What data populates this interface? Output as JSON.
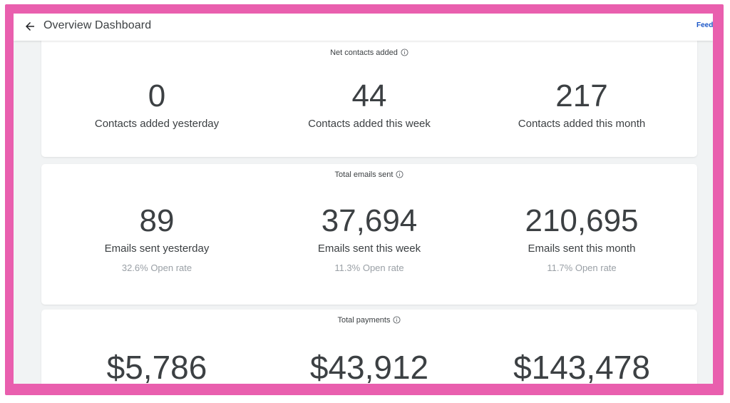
{
  "header": {
    "title": "Overview Dashboard",
    "feedback_label": "Feedback"
  },
  "cards": [
    {
      "title": "Net contacts added",
      "stats": [
        {
          "value": "0",
          "label": "Contacts added yesterday"
        },
        {
          "value": "44",
          "label": "Contacts added this week"
        },
        {
          "value": "217",
          "label": "Contacts added this month"
        }
      ]
    },
    {
      "title": "Total emails sent",
      "stats": [
        {
          "value": "89",
          "label": "Emails sent yesterday",
          "sub": "32.6% Open rate"
        },
        {
          "value": "37,694",
          "label": "Emails sent this week",
          "sub": "11.3% Open rate"
        },
        {
          "value": "210,695",
          "label": "Emails sent this month",
          "sub": "11.7% Open rate"
        }
      ]
    },
    {
      "title": "Total payments",
      "stats": [
        {
          "value": "$5,786"
        },
        {
          "value": "$43,912"
        },
        {
          "value": "$143,478"
        }
      ]
    }
  ],
  "colors": {
    "frame": "#e95fae",
    "link": "#1a56c7",
    "text": "#3c4043",
    "muted": "#9aa0a6",
    "background": "#f1f3f4"
  },
  "icons": {
    "back": "arrow-left-icon",
    "info": "info-icon"
  }
}
